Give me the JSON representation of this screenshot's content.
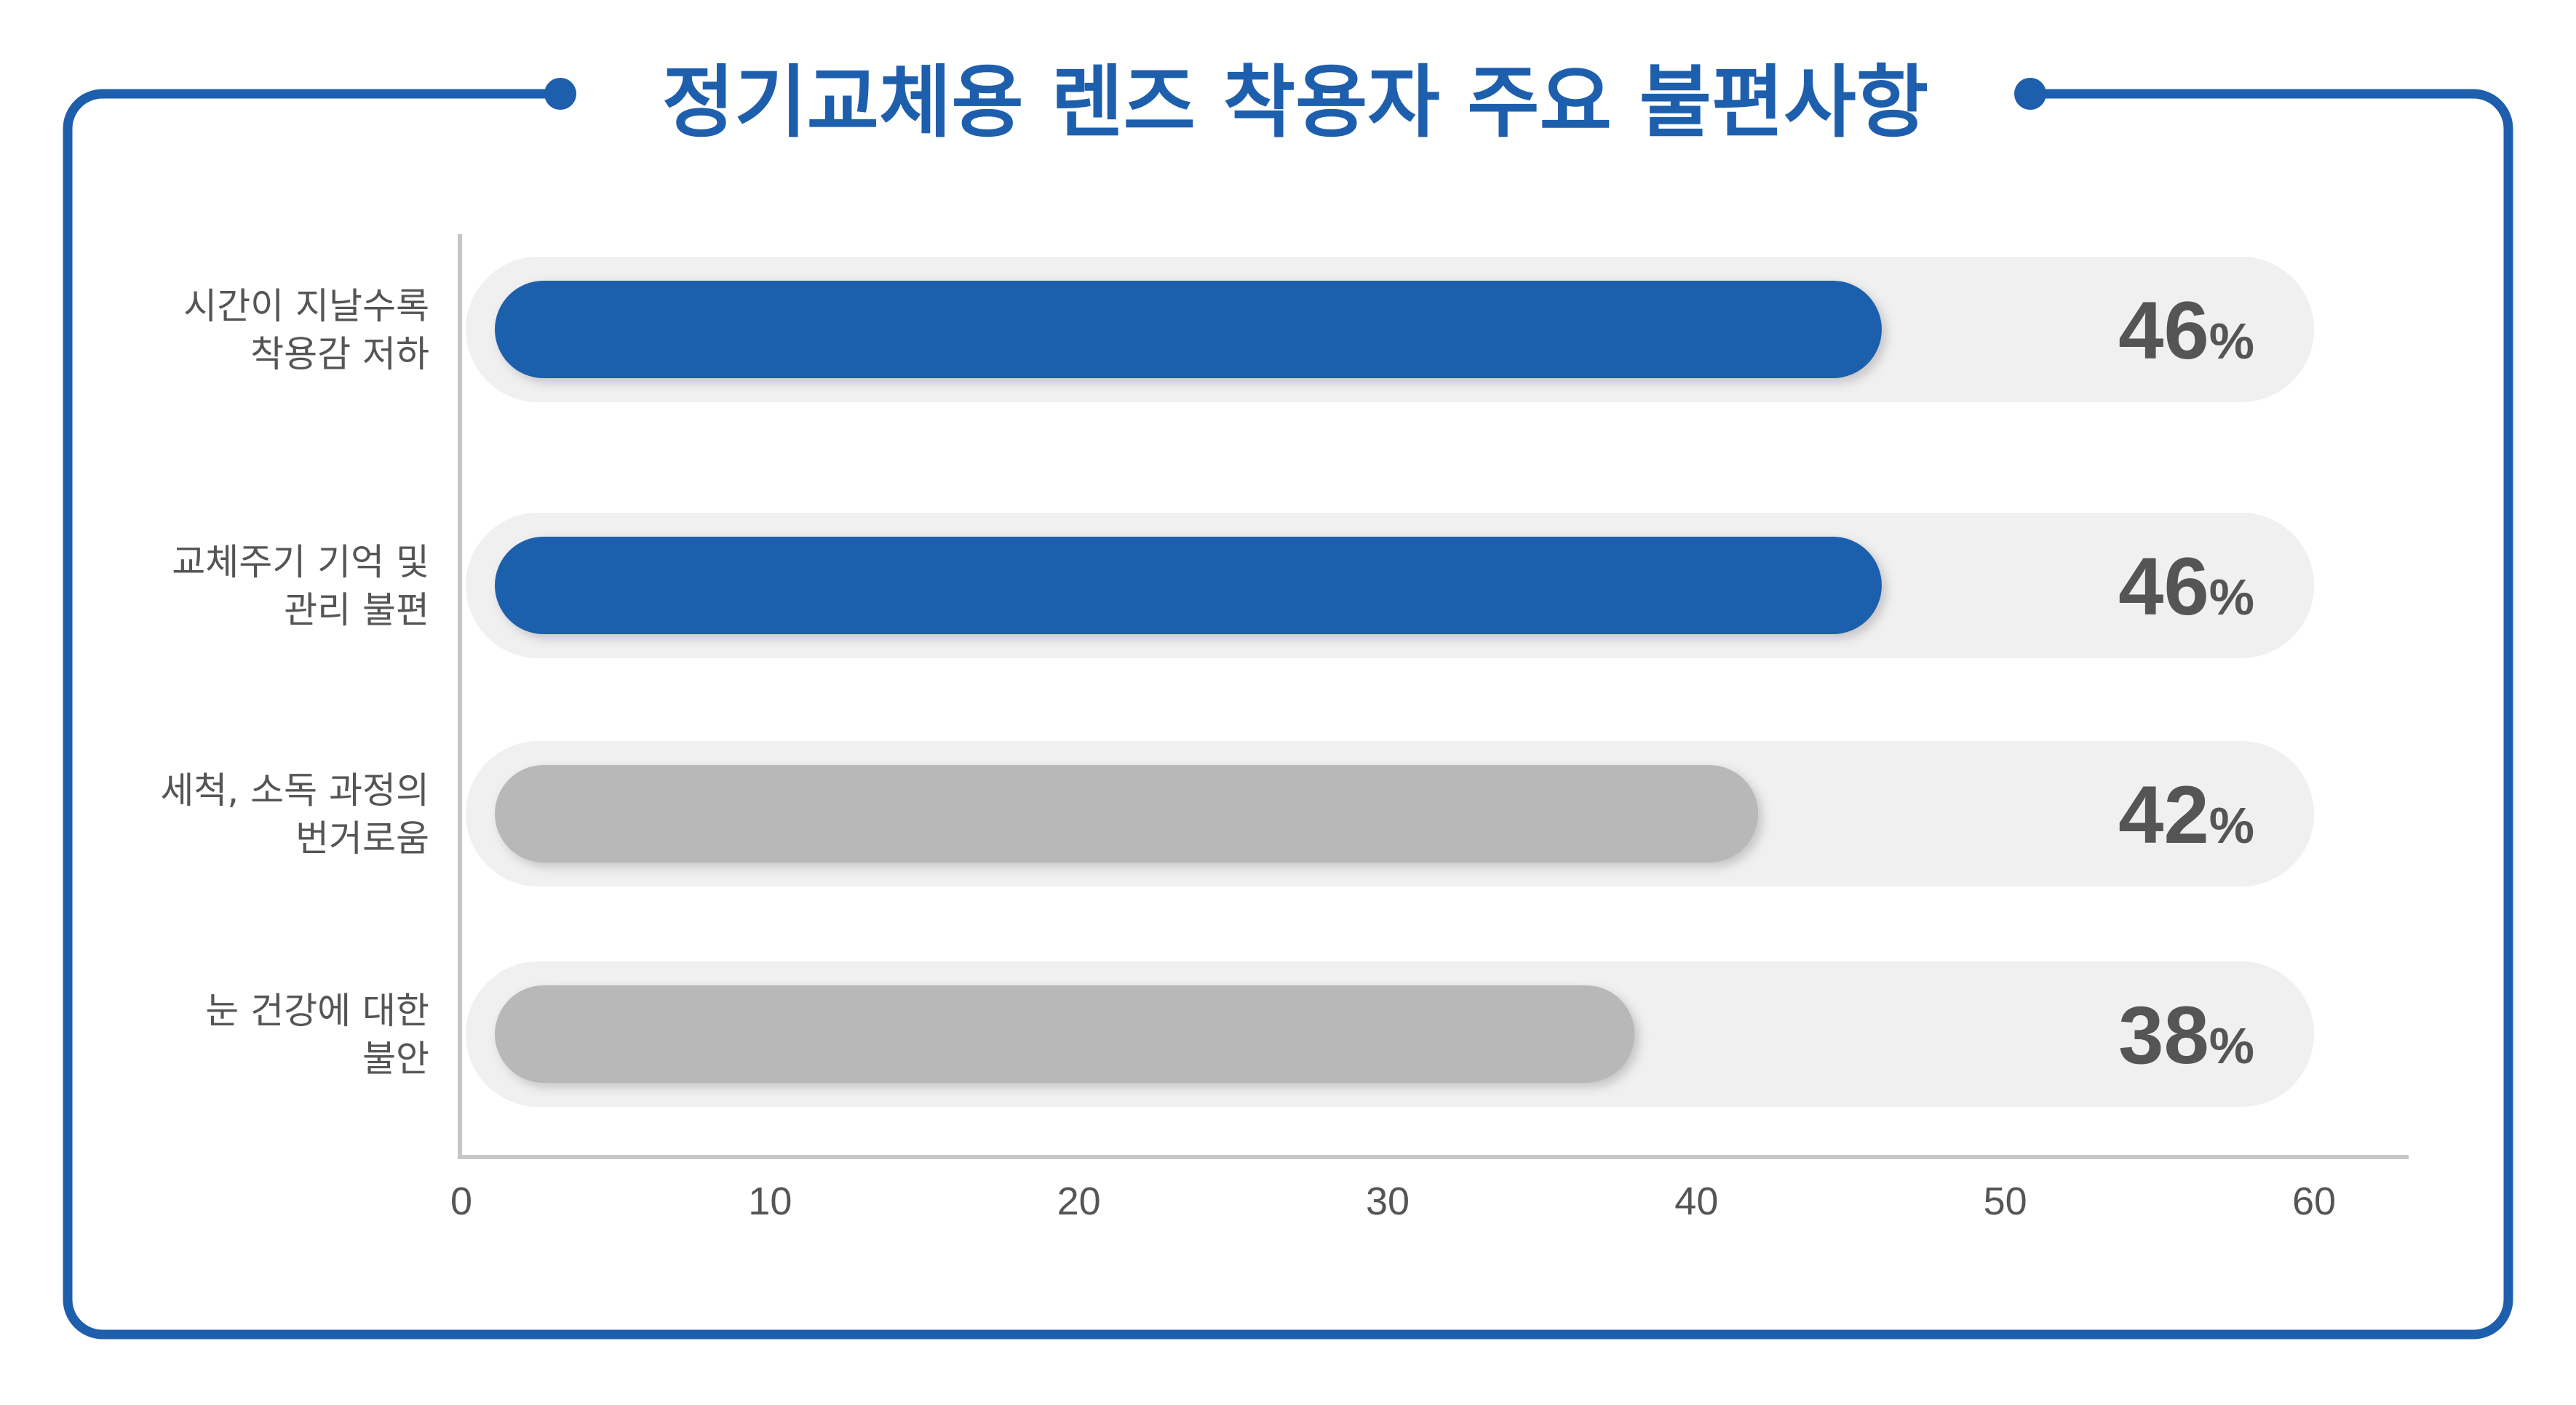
{
  "colors": {
    "frame": "#1e5fad",
    "title": "#1e5fad",
    "highlight_bar": "#1e5fad",
    "muted_bar": "#b8b8b8",
    "track": "#f0f0f0",
    "axis": "#c6c6c6",
    "label_text": "#555555",
    "value_text": "#555555"
  },
  "chart_data": {
    "type": "bar",
    "orientation": "horizontal",
    "title": "정기교체용 렌즈 착용자 주요 불편사항",
    "categories": [
      [
        "시간이 지날수록",
        "착용감 저하"
      ],
      [
        "교체주기 기억 및",
        "관리 불편"
      ],
      [
        "세척, 소독 과정의",
        "번거로움"
      ],
      [
        "눈 건강에 대한",
        "불안"
      ]
    ],
    "values": [
      46,
      46,
      42,
      38
    ],
    "value_labels": [
      "46",
      "46",
      "42",
      "38"
    ],
    "value_suffix": "%",
    "highlighted": [
      true,
      true,
      false,
      false
    ],
    "xlim": [
      0,
      60
    ],
    "xticks": [
      "0",
      "10",
      "20",
      "30",
      "40",
      "50",
      "60"
    ],
    "xlabel": "",
    "ylabel": "",
    "grid": false,
    "legend": "none"
  }
}
